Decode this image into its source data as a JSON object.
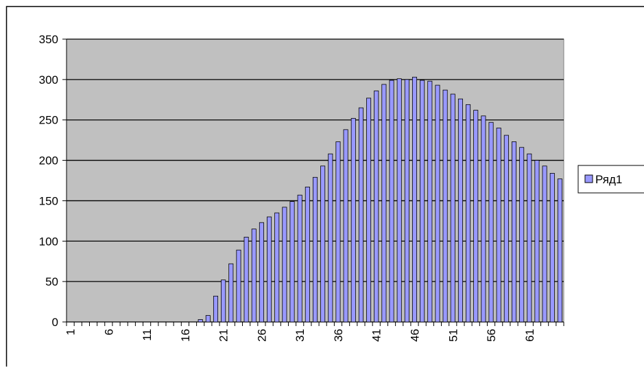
{
  "chart_data": {
    "type": "bar",
    "categories": [
      "1",
      null,
      null,
      null,
      null,
      "6",
      null,
      null,
      null,
      null,
      "11",
      null,
      null,
      null,
      null,
      "16",
      null,
      null,
      null,
      null,
      "21",
      null,
      null,
      null,
      null,
      "26",
      null,
      null,
      null,
      null,
      "31",
      null,
      null,
      null,
      null,
      "36",
      null,
      null,
      null,
      null,
      "41",
      null,
      null,
      null,
      null,
      "46",
      null,
      null,
      null,
      null,
      "51",
      null,
      null,
      null,
      null,
      "56",
      null,
      null,
      null,
      null,
      "61",
      null,
      null,
      null,
      null
    ],
    "series": [
      {
        "name": "Ряд1",
        "color": "#9999ff",
        "values": [
          0,
          0,
          0,
          0,
          0,
          0,
          0,
          0,
          0,
          0,
          0,
          0,
          0,
          0,
          0,
          0,
          0,
          3,
          8,
          32,
          52,
          72,
          89,
          105,
          115,
          123,
          130,
          135,
          142,
          149,
          157,
          167,
          179,
          193,
          208,
          223,
          238,
          252,
          265,
          277,
          286,
          294,
          299,
          301,
          300,
          303,
          299,
          298,
          293,
          287,
          282,
          276,
          269,
          262,
          255,
          247,
          240,
          231,
          223,
          216,
          208,
          200,
          193,
          184,
          177
        ]
      }
    ],
    "ylim": [
      0,
      350
    ],
    "yticks": [
      0,
      50,
      100,
      150,
      200,
      250,
      300,
      350
    ],
    "grid": true,
    "legend": "right"
  }
}
